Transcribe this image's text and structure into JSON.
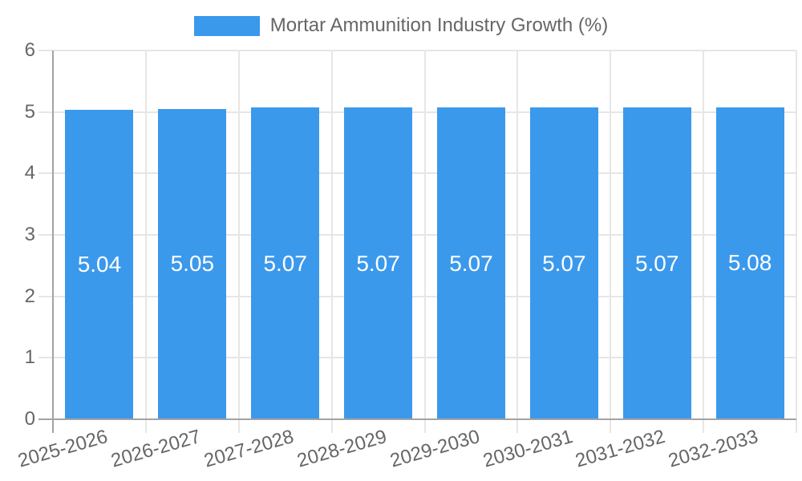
{
  "chart_data": {
    "type": "bar",
    "title": "",
    "xlabel": "",
    "ylabel": "",
    "legend": {
      "label": "Mortar Ammunition Industry Growth (%)",
      "color": "#3B99EC",
      "position": "top"
    },
    "categories": [
      "2025-2026",
      "2026-2027",
      "2027-2028",
      "2028-2029",
      "2029-2030",
      "2030-2031",
      "2031-2032",
      "2032-2033"
    ],
    "series": [
      {
        "name": "Mortar Ammunition Industry Growth (%)",
        "values": [
          5.04,
          5.05,
          5.07,
          5.07,
          5.07,
          5.07,
          5.07,
          5.08
        ]
      }
    ],
    "value_labels": [
      "5.04",
      "5.05",
      "5.07",
      "5.07",
      "5.07",
      "5.07",
      "5.07",
      "5.08"
    ],
    "ylim": [
      0,
      6
    ],
    "yticks": [
      0,
      1,
      2,
      3,
      4,
      5,
      6
    ],
    "grid": true,
    "x_tick_rotation_deg": -16,
    "colors": {
      "bar": "#3B99EC",
      "value_label": "#ffffff",
      "axis_text": "#666666",
      "grid_line": "#e6e6e6",
      "axis_line": "#a3a3a3",
      "background": "#ffffff"
    }
  }
}
